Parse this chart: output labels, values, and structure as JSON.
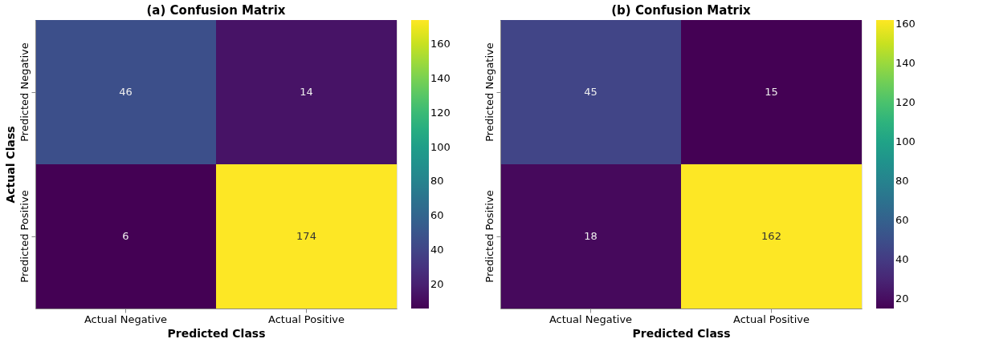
{
  "chart_data": [
    {
      "type": "heatmap",
      "title": "(a) Confusion Matrix",
      "xlabel": "Predicted Class",
      "ylabel": "Actual Class",
      "categories": [
        "Actual Negative",
        "Actual Positive"
      ],
      "y_categories": [
        "Predicted Negative",
        "Predicted Positive"
      ],
      "cells": [
        [
          46,
          14
        ],
        [
          6,
          174
        ]
      ],
      "clim": [
        6,
        174
      ],
      "cticks": [
        20,
        40,
        60,
        80,
        100,
        120,
        140,
        160
      ],
      "data_labels": true
    },
    {
      "type": "heatmap",
      "title": "(b) Confusion Matrix",
      "xlabel": "Predicted Class",
      "categories": [
        "Actual Negative",
        "Actual Positive"
      ],
      "y_categories": [
        "Predicted Negative",
        "Predicted Positive"
      ],
      "cells": [
        [
          45,
          15
        ],
        [
          18,
          162
        ]
      ],
      "clim": [
        15,
        162
      ],
      "cticks": [
        20,
        40,
        60,
        80,
        100,
        120,
        140,
        160
      ],
      "data_labels": true
    }
  ]
}
